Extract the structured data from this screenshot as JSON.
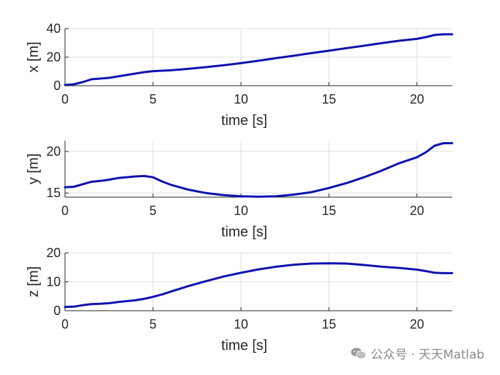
{
  "chart_data": [
    {
      "type": "line",
      "xlabel": "time [s]",
      "ylabel": "x [m]",
      "xlim": [
        0,
        22
      ],
      "ylim": [
        0,
        40
      ],
      "xticks": [
        "0",
        "5",
        "10",
        "15",
        "20"
      ],
      "yticks": [
        "0",
        "20",
        "40"
      ],
      "grid": true,
      "series": [
        {
          "color": "#1010b0",
          "x": [
            0,
            0.5,
            1,
            1.5,
            2,
            2.5,
            3,
            3.5,
            4,
            4.5,
            5,
            5.5,
            6,
            7,
            8,
            9,
            10,
            11,
            12,
            13,
            14,
            15,
            16,
            17,
            18,
            19,
            20,
            20.5,
            21,
            21.5,
            22
          ],
          "y": [
            0.5,
            1,
            2.5,
            4.5,
            5,
            5.5,
            6.5,
            7.5,
            8.5,
            9.5,
            10.2,
            10.5,
            10.8,
            11.8,
            13,
            14.3,
            15.8,
            17.5,
            19.3,
            21,
            22.8,
            24.5,
            26.3,
            28,
            29.8,
            31.5,
            32.8,
            34,
            35.5,
            36,
            36
          ]
        }
      ]
    },
    {
      "type": "line",
      "xlabel": "time [s]",
      "ylabel": "y [m]",
      "xlim": [
        0,
        22
      ],
      "ylim": [
        14.5,
        21.3
      ],
      "xticks": [
        "0",
        "5",
        "10",
        "15",
        "20"
      ],
      "yticks": [
        "15",
        "20"
      ],
      "grid": true,
      "series": [
        {
          "color": "#1010b0",
          "x": [
            0,
            0.5,
            1,
            1.5,
            2,
            2.5,
            3,
            3.5,
            4,
            4.5,
            5,
            5.5,
            6,
            7,
            8,
            9,
            10,
            11,
            12,
            13,
            14,
            15,
            16,
            17,
            18,
            19,
            20,
            20.5,
            21,
            21.5,
            22
          ],
          "y": [
            15.7,
            15.75,
            16.05,
            16.35,
            16.45,
            16.6,
            16.8,
            16.9,
            17.0,
            17.05,
            16.9,
            16.4,
            16.0,
            15.4,
            15.0,
            14.75,
            14.6,
            14.55,
            14.6,
            14.8,
            15.1,
            15.6,
            16.2,
            16.9,
            17.7,
            18.6,
            19.3,
            19.9,
            20.7,
            21.0,
            21.0
          ]
        }
      ]
    },
    {
      "type": "line",
      "xlabel": "time [s]",
      "ylabel": "z [m]",
      "xlim": [
        0,
        22
      ],
      "ylim": [
        0,
        20
      ],
      "xticks": [
        "0",
        "5",
        "10",
        "15",
        "20"
      ],
      "yticks": [
        "0",
        "10",
        "20"
      ],
      "grid": true,
      "series": [
        {
          "color": "#1010b0",
          "x": [
            0,
            0.5,
            1,
            1.5,
            2,
            2.5,
            3,
            3.5,
            4,
            4.5,
            5,
            5.5,
            6,
            7,
            8,
            9,
            10,
            11,
            12,
            13,
            14,
            15,
            16,
            17,
            18,
            19,
            20,
            20.5,
            21,
            21.5,
            22
          ],
          "y": [
            1.3,
            1.4,
            1.9,
            2.3,
            2.4,
            2.6,
            3.0,
            3.3,
            3.6,
            4.1,
            4.8,
            5.6,
            6.6,
            8.5,
            10.2,
            11.8,
            13.1,
            14.3,
            15.2,
            15.9,
            16.3,
            16.4,
            16.3,
            15.8,
            15.2,
            14.8,
            14.2,
            13.7,
            13.1,
            13.0,
            13.0
          ]
        }
      ]
    }
  ],
  "watermark": {
    "logo_icon": "wechat-icon",
    "text": "公众号 · 天天Matlab"
  }
}
